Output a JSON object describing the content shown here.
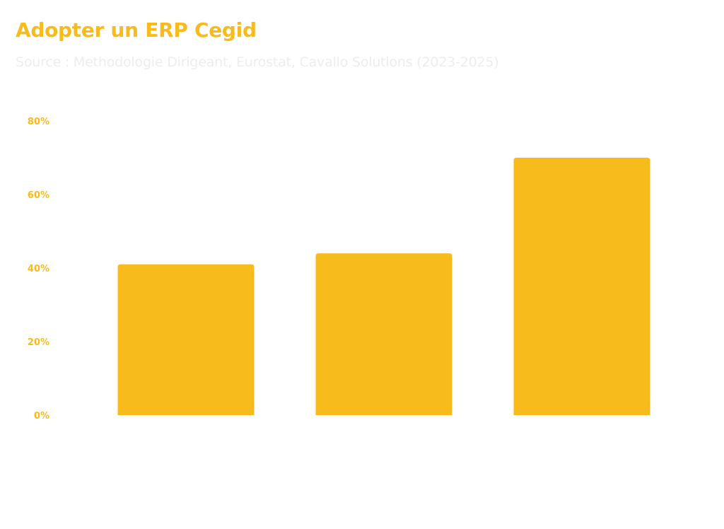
{
  "title": "Adopter un ERP Cegid",
  "subtitle": "Source : Methodologie Dirigeant, Eurostat, Cavallo Solutions (2023-2025)",
  "colors": {
    "bar": "#F8BB1C",
    "title": "#F8BB1C",
    "tick": "#F8BB1C",
    "subtitle": "#EDEDED"
  },
  "chart_data": {
    "type": "bar",
    "title": "Adopter un ERP Cegid",
    "subtitle": "Source : Methodologie Dirigeant, Eurostat, Cavallo Solutions (2023-2025)",
    "categories": [
      "",
      "",
      ""
    ],
    "values": [
      41,
      44,
      70
    ],
    "y_ticks": [
      {
        "value": 0,
        "label": "0%"
      },
      {
        "value": 20,
        "label": "20%"
      },
      {
        "value": 40,
        "label": "40%"
      },
      {
        "value": 60,
        "label": "60%"
      },
      {
        "value": 80,
        "label": "80%"
      }
    ],
    "ylim": [
      0,
      80
    ],
    "unit": "%",
    "grid": false,
    "legend": "none"
  }
}
